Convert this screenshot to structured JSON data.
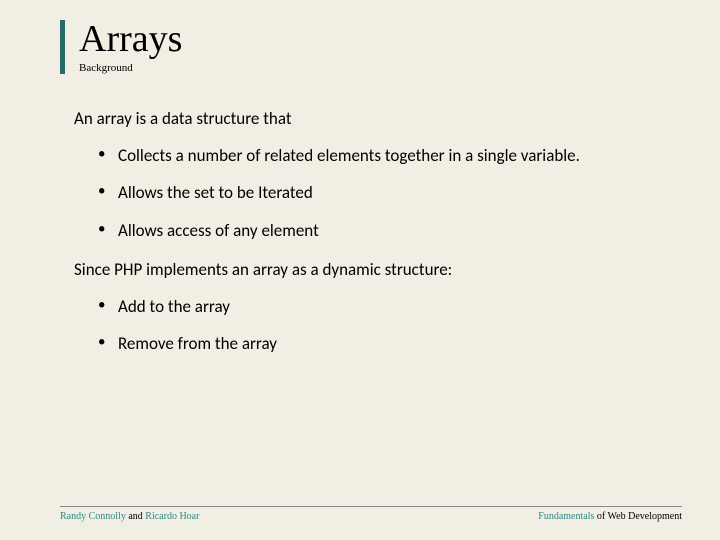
{
  "colors": {
    "background": "#f1eee3",
    "accent_border": "#2b6a6a",
    "highlight_text": "#2b8a8a",
    "body_text": "#000000",
    "rule": "#888888"
  },
  "typography": {
    "title_font": "Georgia",
    "title_size_pt": 38,
    "subtitle_size_pt": 11,
    "body_font": "Calibri",
    "body_size_pt": 17,
    "footer_size_pt": 10
  },
  "title": "Arrays",
  "subtitle": "Background",
  "intro1": "An array is a data structure that",
  "bullets1": [
    "Collects a number of related elements together in a single variable.",
    "Allows the set to be Iterated",
    "Allows access of any element"
  ],
  "intro2": "Since PHP implements an array as a dynamic structure:",
  "bullets2": [
    "Add to the array",
    "Remove from the array"
  ],
  "footer": {
    "left_hl1": "Randy Connolly",
    "left_mid": " and ",
    "left_hl2": "Ricardo Hoar",
    "right_hl": "Fundamentals",
    "right_rest": " of Web Development"
  }
}
